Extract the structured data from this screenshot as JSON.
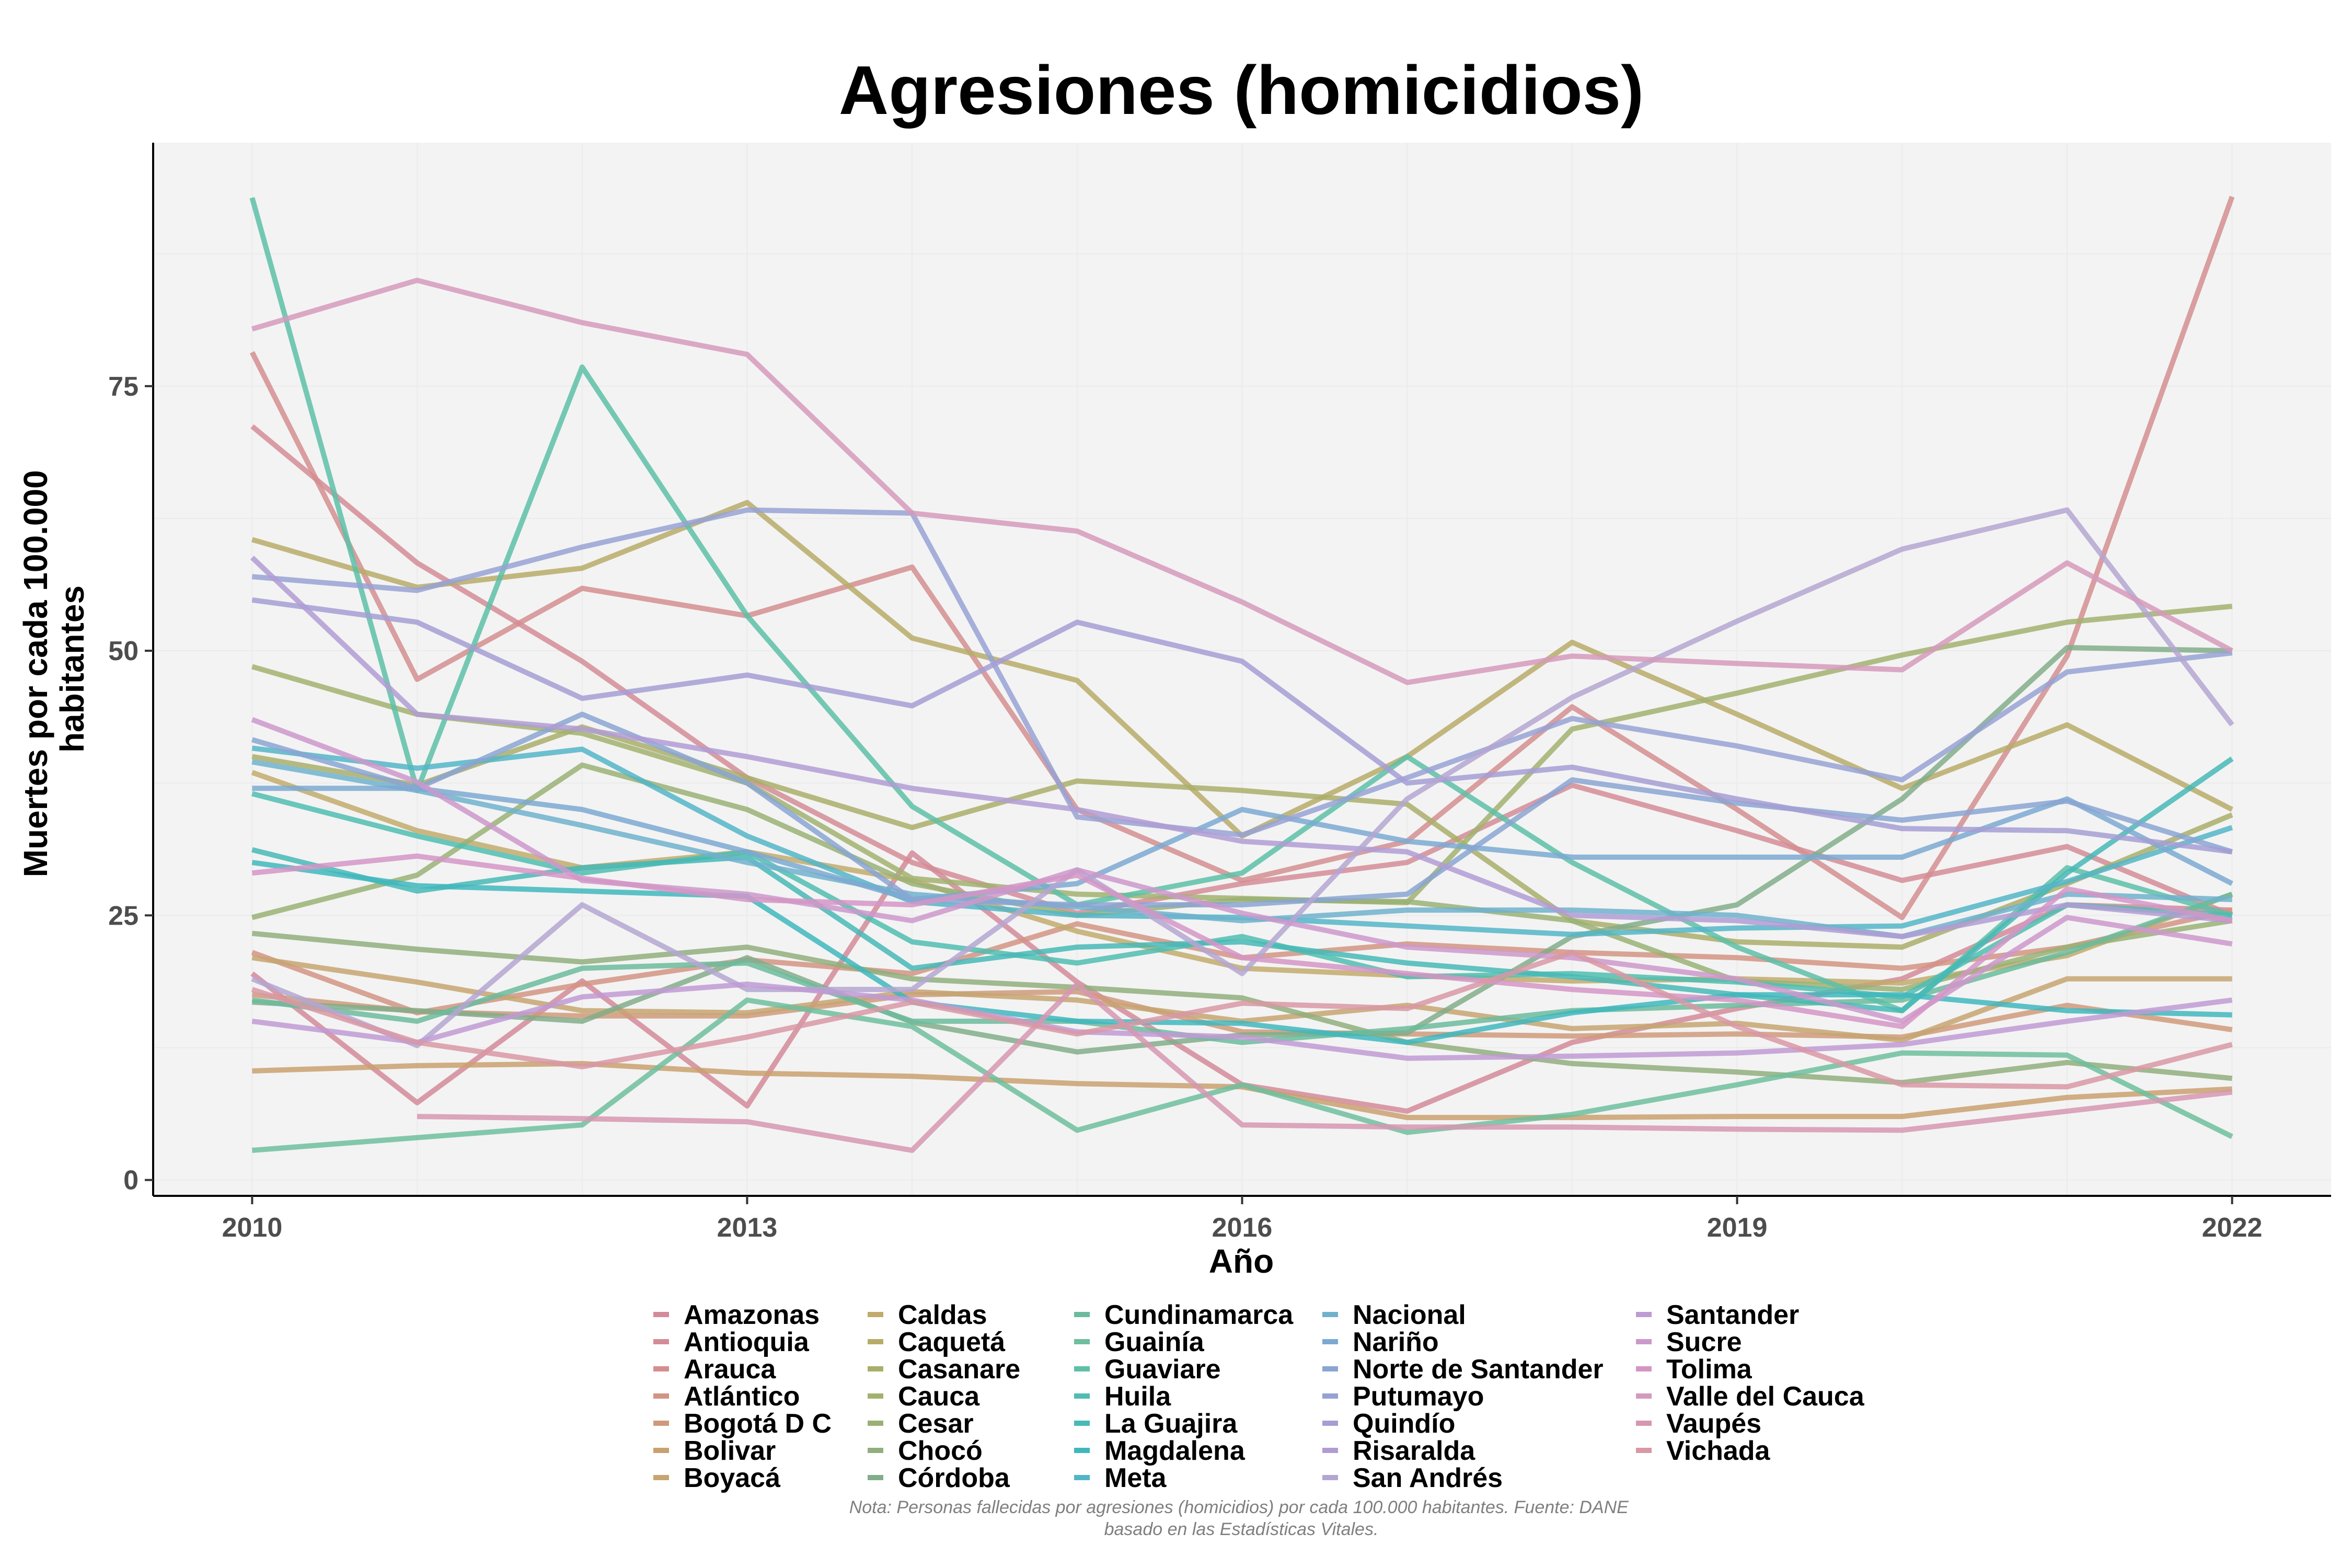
{
  "chart_data": {
    "type": "line",
    "title": "Agresiones (homicidios)",
    "xlabel": "Año",
    "ylabel": "Muertes por cada 100.000 habitantes",
    "ylabel_lines": [
      "Muertes por cada 100.000",
      "habitantes"
    ],
    "caption_lines": [
      "Nota: Personas fallecidas por agresiones (homicidios) por cada 100.000 habitantes. Fuente: DANE",
      "basado en las Estadísticas Vitales."
    ],
    "x_ticks": [
      2010,
      2013,
      2016,
      2019,
      2022
    ],
    "y_ticks": [
      0,
      25,
      50,
      75
    ],
    "xlim": [
      2009.4,
      2022.6
    ],
    "ylim": [
      -1.5,
      98
    ],
    "grid": true,
    "legend_position": "bottom",
    "years": [
      2010,
      2011,
      2012,
      2013,
      2014,
      2015,
      2016,
      2017,
      2018,
      2019,
      2020,
      2021,
      2022
    ],
    "series": [
      {
        "name": "Amazonas",
        "color": "#d38a99",
        "values": [
          19.5,
          7.3,
          18.8,
          7.0,
          30.9,
          18.7,
          9.0,
          6.5,
          13.0,
          16.2,
          19.0,
          26.0,
          25.5
        ]
      },
      {
        "name": "Antioquia",
        "color": "#d38c97",
        "values": [
          71.2,
          58.3,
          49.0,
          38.0,
          30.0,
          25.2,
          28.0,
          30.0,
          37.3,
          33.0,
          28.3,
          31.5,
          25.0
        ]
      },
      {
        "name": "Arauca",
        "color": "#d48e8f",
        "values": [
          78.2,
          47.3,
          55.9,
          53.3,
          57.9,
          35.0,
          28.3,
          32.0,
          44.7,
          35.0,
          24.8,
          49.5,
          92.9
        ]
      },
      {
        "name": "Atlántico",
        "color": "#d29483",
        "values": [
          21.5,
          15.8,
          18.5,
          20.8,
          19.5,
          24.2,
          21.0,
          22.3,
          21.5,
          21.0,
          20.0,
          22.0,
          25.5
        ]
      },
      {
        "name": "Bogotá D C",
        "color": "#cf9a7a",
        "values": [
          17.5,
          15.9,
          15.5,
          15.5,
          17.5,
          17.8,
          14.0,
          13.8,
          13.6,
          13.8,
          13.5,
          16.5,
          14.2
        ]
      },
      {
        "name": "Bolivar",
        "color": "#c9a06f",
        "values": [
          10.3,
          10.8,
          11.0,
          10.1,
          9.8,
          9.1,
          8.8,
          5.9,
          5.9,
          6.0,
          6.0,
          7.8,
          8.6
        ]
      },
      {
        "name": "Boyacá",
        "color": "#c6a571",
        "values": [
          21.0,
          18.7,
          16.0,
          15.8,
          17.8,
          17.0,
          15.0,
          16.5,
          14.3,
          14.8,
          13.2,
          19.0,
          19.0
        ]
      },
      {
        "name": "Caldas",
        "color": "#c2aa6c",
        "values": [
          38.5,
          33.0,
          29.5,
          31.0,
          28.3,
          23.5,
          20.0,
          19.3,
          18.8,
          19.0,
          18.6,
          21.2,
          27.0
        ]
      },
      {
        "name": "Caquetá",
        "color": "#b7ac69",
        "values": [
          60.5,
          56.0,
          57.8,
          64.0,
          51.2,
          47.2,
          32.5,
          40.0,
          50.8,
          44.0,
          37.0,
          43.0,
          35.0
        ]
      },
      {
        "name": "Casanare",
        "color": "#a9ae6a",
        "values": [
          40.0,
          37.3,
          42.8,
          38.0,
          33.3,
          37.7,
          36.8,
          35.5,
          24.5,
          22.5,
          22.0,
          28.0,
          34.5
        ]
      },
      {
        "name": "Cauca",
        "color": "#a1b26f",
        "values": [
          48.5,
          44.0,
          42.2,
          37.5,
          28.5,
          27.0,
          26.6,
          26.2,
          42.6,
          46.0,
          49.6,
          52.7,
          54.2
        ]
      },
      {
        "name": "Cesar",
        "color": "#99b174",
        "values": [
          24.8,
          28.8,
          39.2,
          35.0,
          28.0,
          25.0,
          26.5,
          26.3,
          24.5,
          18.8,
          18.0,
          22.0,
          24.5
        ]
      },
      {
        "name": "Chocó",
        "color": "#91ae7d",
        "values": [
          23.3,
          21.8,
          20.6,
          22.0,
          19.0,
          18.2,
          17.2,
          13.0,
          11.0,
          10.2,
          9.2,
          11.1,
          9.6
        ]
      },
      {
        "name": "Córdoba",
        "color": "#81ad8a",
        "values": [
          16.8,
          16.0,
          15.0,
          21.0,
          14.9,
          12.1,
          13.7,
          13.9,
          23.0,
          26.0,
          36.0,
          50.3,
          50.0
        ]
      },
      {
        "name": "Cundinamarca",
        "color": "#6bbb9c",
        "values": [
          17.0,
          15.0,
          20.0,
          20.5,
          15.0,
          15.0,
          13.0,
          14.3,
          16.0,
          16.5,
          17.0,
          21.5,
          27.0
        ]
      },
      {
        "name": "Guainía",
        "color": "#6fbe9e",
        "values": [
          2.8,
          null,
          5.2,
          17.0,
          14.5,
          4.7,
          9.0,
          4.5,
          6.2,
          9.0,
          12.0,
          11.8,
          4.1
        ]
      },
      {
        "name": "Guaviare",
        "color": "#5dc0a7",
        "values": [
          92.8,
          36.8,
          76.8,
          53.3,
          35.3,
          26.0,
          29.0,
          40.0,
          30.0,
          22.0,
          16.0,
          29.5,
          25.0
        ]
      },
      {
        "name": "Huila",
        "color": "#4fbdb0",
        "values": [
          36.5,
          32.5,
          29.0,
          31.0,
          22.5,
          20.5,
          23.0,
          19.2,
          19.5,
          18.7,
          17.3,
          26.0,
          25.0
        ]
      },
      {
        "name": "La Guajira",
        "color": "#47b9b6",
        "values": [
          31.2,
          27.3,
          29.5,
          30.5,
          20.0,
          22.0,
          22.5,
          20.5,
          19.2,
          17.5,
          16.0,
          29.0,
          39.8
        ]
      },
      {
        "name": "Magdalena",
        "color": "#3fb7bd",
        "values": [
          30.0,
          27.8,
          27.3,
          26.8,
          16.8,
          15.0,
          14.8,
          13.0,
          15.8,
          17.5,
          17.5,
          16.0,
          15.6
        ]
      },
      {
        "name": "Meta",
        "color": "#53b5c7",
        "values": [
          40.8,
          38.9,
          40.7,
          32.5,
          26.3,
          25.0,
          24.8,
          24.0,
          23.2,
          23.8,
          24.0,
          28.2,
          33.3
        ]
      },
      {
        "name": "Nacional",
        "color": "#6fb1cd",
        "values": [
          39.5,
          36.8,
          33.5,
          30.0,
          27.0,
          25.8,
          24.5,
          25.5,
          25.5,
          25.0,
          23.0,
          27.0,
          26.5
        ]
      },
      {
        "name": "Nariño",
        "color": "#7ba9d1",
        "values": [
          37.0,
          37.0,
          35.0,
          31.0,
          26.5,
          28.0,
          35.0,
          32.0,
          30.5,
          30.5,
          30.5,
          36.0,
          28.0
        ]
      },
      {
        "name": "Norte de Santander",
        "color": "#8aa5d2",
        "values": [
          41.6,
          37.0,
          44.0,
          37.5,
          26.5,
          26.0,
          26.0,
          27.0,
          37.8,
          35.6,
          34.0,
          35.8,
          31.0
        ]
      },
      {
        "name": "Putumayo",
        "color": "#97a2d3",
        "values": [
          57.0,
          55.7,
          59.8,
          63.3,
          63.0,
          34.3,
          32.6,
          38.0,
          43.6,
          41.0,
          37.8,
          48.0,
          49.8
        ]
      },
      {
        "name": "Quindío",
        "color": "#a59ed3",
        "values": [
          54.8,
          52.7,
          45.5,
          47.7,
          44.8,
          52.7,
          49.0,
          37.5,
          39.0,
          36.0,
          33.2,
          33.0,
          31.0
        ]
      },
      {
        "name": "Risaralda",
        "color": "#b09cd4",
        "values": [
          58.8,
          44.0,
          42.6,
          40.0,
          37.0,
          35.0,
          32.0,
          31.0,
          25.0,
          24.5,
          23.0,
          26.0,
          24.5
        ]
      },
      {
        "name": "San Andrés",
        "color": "#b4a6d1",
        "values": [
          19.0,
          12.7,
          26.0,
          18.0,
          18.0,
          29.3,
          19.5,
          36.0,
          45.6,
          52.8,
          59.6,
          63.3,
          43.0
        ]
      },
      {
        "name": "Santander",
        "color": "#c09ad4",
        "values": [
          15.0,
          13.0,
          17.3,
          18.5,
          17.0,
          14.0,
          13.5,
          11.5,
          11.7,
          12.0,
          12.8,
          15.0,
          17.0
        ]
      },
      {
        "name": "Sucre",
        "color": "#cc98cb",
        "values": [
          43.5,
          37.6,
          28.3,
          27.0,
          24.5,
          29.3,
          25.2,
          22.0,
          21.0,
          19.0,
          15.0,
          24.8,
          22.3
        ]
      },
      {
        "name": "Tolima",
        "color": "#d495c5",
        "values": [
          29.0,
          30.6,
          28.5,
          26.5,
          26.0,
          28.8,
          21.0,
          19.5,
          18.0,
          17.0,
          14.5,
          27.5,
          24.5
        ]
      },
      {
        "name": "Valle del Cauca",
        "color": "#d59abb",
        "values": [
          80.4,
          85.0,
          81.0,
          78.0,
          63.0,
          61.3,
          54.6,
          47.0,
          49.5,
          48.8,
          48.2,
          58.3,
          50.0
        ]
      },
      {
        "name": "Vaupés",
        "color": "#d697b0",
        "values": [
          null,
          6.0,
          5.8,
          5.5,
          2.8,
          18.5,
          5.2,
          5.0,
          5.0,
          4.8,
          4.7,
          6.5,
          8.3
        ]
      },
      {
        "name": "Vichada",
        "color": "#d898a4",
        "values": [
          18.0,
          13.0,
          10.7,
          13.5,
          16.8,
          13.8,
          16.7,
          16.2,
          21.5,
          14.5,
          9.0,
          8.8,
          12.8
        ]
      }
    ]
  }
}
